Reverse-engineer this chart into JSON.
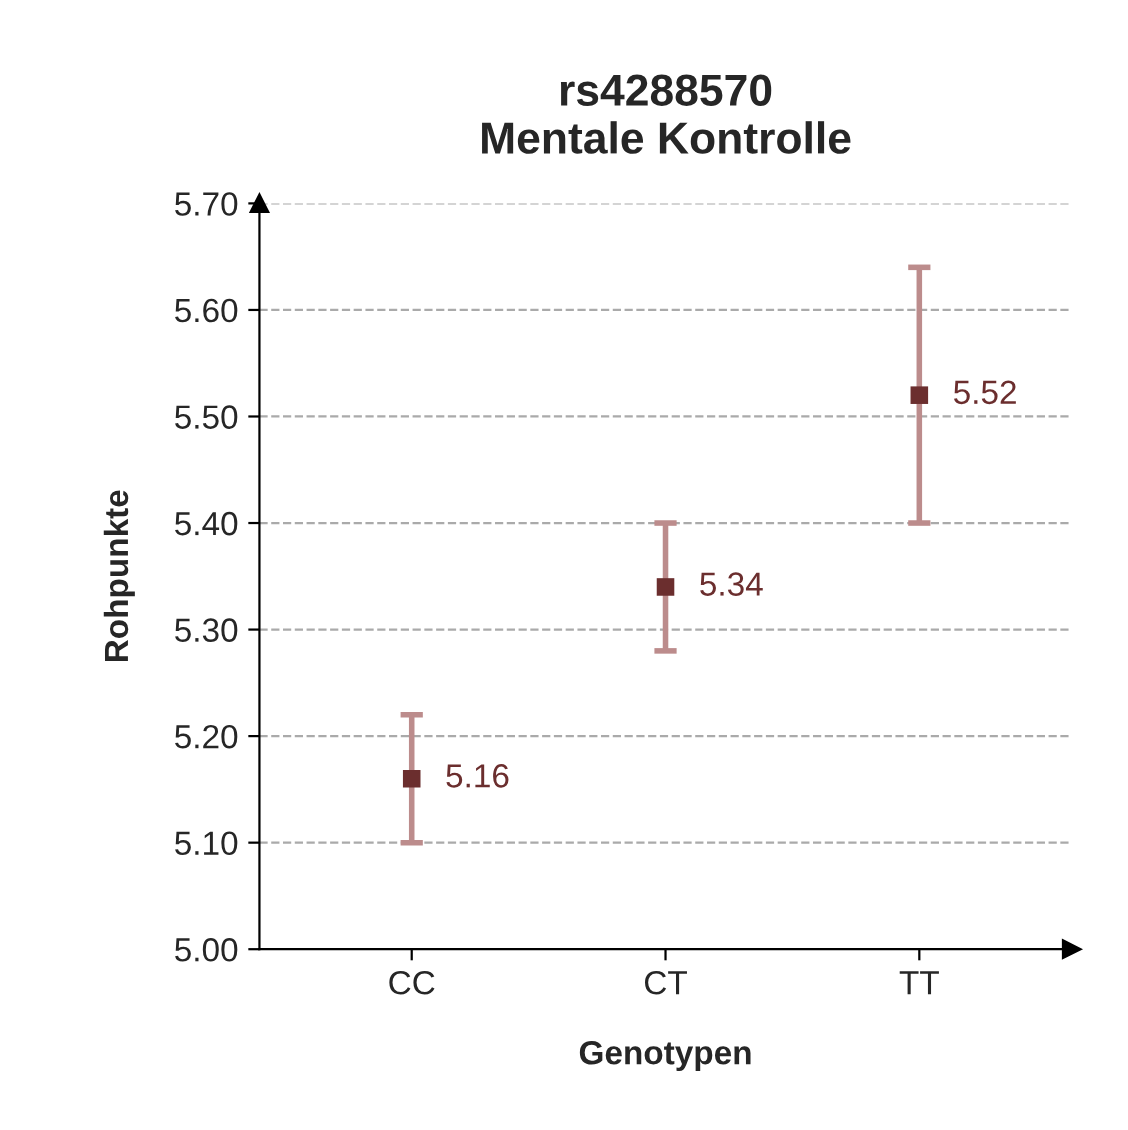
{
  "chart_data": {
    "type": "scatter",
    "title": "rs4288570\nMentale Kontrolle",
    "xlabel": "Genotypen",
    "ylabel": "Rohpunkte",
    "categories": [
      "CC",
      "CT",
      "TT"
    ],
    "series": [
      {
        "color": "#6b2e2e",
        "values": [
          5.16,
          5.34,
          5.52
        ],
        "errors": [
          [
            5.1,
            5.22
          ],
          [
            5.28,
            5.4
          ],
          [
            5.4,
            5.64
          ]
        ],
        "value_labels": [
          "5.16",
          "5.34",
          "5.52"
        ]
      }
    ],
    "ylim": [
      5.0,
      5.7
    ],
    "yticks": [
      {
        "value": 5.0,
        "label": "5.00"
      },
      {
        "value": 5.1,
        "label": "5.10"
      },
      {
        "value": 5.2,
        "label": "5.20"
      },
      {
        "value": 5.3,
        "label": "5.30"
      },
      {
        "value": 5.4,
        "label": "5.40"
      },
      {
        "value": 5.5,
        "label": "5.50"
      },
      {
        "value": 5.6,
        "label": "5.60"
      },
      {
        "value": 5.7,
        "label": "5.70"
      }
    ],
    "grid": "y",
    "marker": "square",
    "legend": false
  }
}
